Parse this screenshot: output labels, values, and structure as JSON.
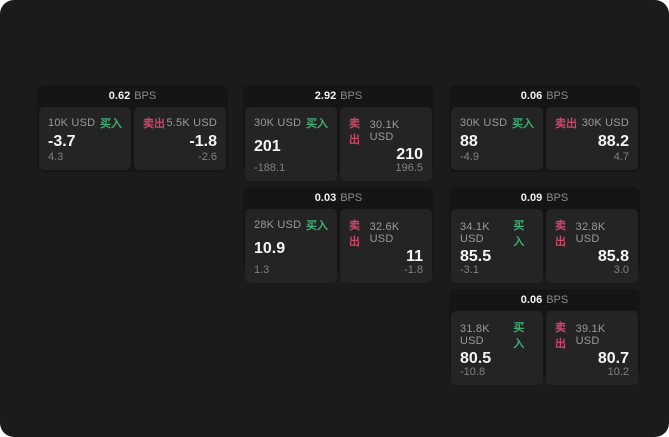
{
  "page": {
    "panel_bg": "#1b1b1b",
    "outside_bg": "#ffffff",
    "card_bg": "#151515",
    "tile_bg": "#242424"
  },
  "colors": {
    "buy_green": "#3fae73",
    "sell_red": "#c9486a",
    "primary_text": "#f5f5f5",
    "secondary_text": "#9a9a9a"
  },
  "labels": {
    "bps": "BPS",
    "buy": "买入",
    "sell": "卖出"
  },
  "cards": [
    {
      "bps": "0.62",
      "buy": {
        "amount": "10K USD",
        "value": "-3.7",
        "sub": "4.3"
      },
      "sell": {
        "amount": "5.5K USD",
        "value": "-1.8",
        "sub": "-2.6"
      }
    },
    {
      "bps": "2.92",
      "buy": {
        "amount": "30K USD",
        "value": "201",
        "sub": "-188.1"
      },
      "sell": {
        "amount": "30.1K USD",
        "value": "210",
        "sub": "196.5"
      }
    },
    {
      "bps": "0.06",
      "buy": {
        "amount": "30K USD",
        "value": "88",
        "sub": "-4.9"
      },
      "sell": {
        "amount": "30K USD",
        "value": "88.2",
        "sub": "4.7"
      }
    },
    {
      "bps": "0.03",
      "buy": {
        "amount": "28K USD",
        "value": "10.9",
        "sub": "1.3"
      },
      "sell": {
        "amount": "32.6K USD",
        "value": "11",
        "sub": "-1.8"
      }
    },
    {
      "bps": "0.09",
      "buy": {
        "amount": "34.1K USD",
        "value": "85.5",
        "sub": "-3.1"
      },
      "sell": {
        "amount": "32.8K USD",
        "value": "85.8",
        "sub": "3.0"
      }
    },
    {
      "bps": "0.06",
      "buy": {
        "amount": "31.8K USD",
        "value": "80.5",
        "sub": "-10.8"
      },
      "sell": {
        "amount": "39.1K USD",
        "value": "80.7",
        "sub": "10.2"
      }
    }
  ]
}
